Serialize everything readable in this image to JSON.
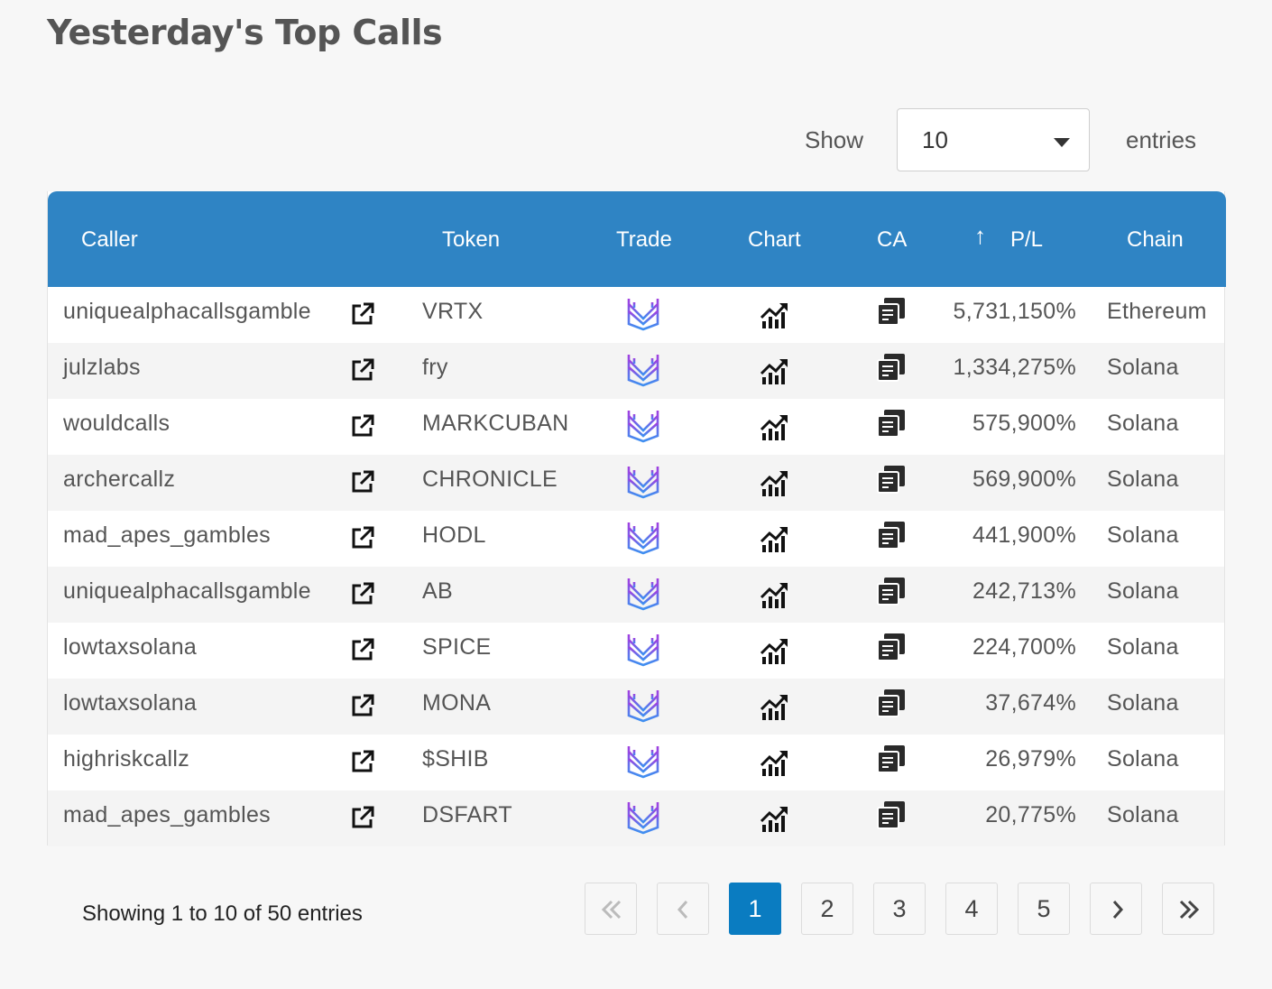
{
  "title": "Yesterday's Top Calls",
  "length_menu": {
    "show_label": "Show",
    "selected": "10",
    "entries_label": "entries"
  },
  "table": {
    "headers": {
      "caller": "Caller",
      "token": "Token",
      "trade": "Trade",
      "chart": "Chart",
      "ca": "CA",
      "sort_icon": "↑",
      "pl": "P/L",
      "chain": "Chain"
    },
    "icons": {
      "external": "external-link-icon",
      "trade": "trade-logo-icon",
      "chart": "chart-up-icon",
      "ca": "copy-icon"
    },
    "rows": [
      {
        "caller": "uniquealphacallsgamble",
        "token": "VRTX",
        "pl": "5,731,150%",
        "chain": "Ethereum"
      },
      {
        "caller": "julzlabs",
        "token": "fry",
        "pl": "1,334,275%",
        "chain": "Solana"
      },
      {
        "caller": "wouldcalls",
        "token": "MARKCUBAN",
        "pl": "575,900%",
        "chain": "Solana"
      },
      {
        "caller": "archercallz",
        "token": "CHRONICLE",
        "pl": "569,900%",
        "chain": "Solana"
      },
      {
        "caller": "mad_apes_gambles",
        "token": "HODL",
        "pl": "441,900%",
        "chain": "Solana"
      },
      {
        "caller": "uniquealphacallsgamble",
        "token": "AB",
        "pl": "242,713%",
        "chain": "Solana"
      },
      {
        "caller": "lowtaxsolana",
        "token": "SPICE",
        "pl": "224,700%",
        "chain": "Solana"
      },
      {
        "caller": "lowtaxsolana",
        "token": "MONA",
        "pl": "37,674%",
        "chain": "Solana"
      },
      {
        "caller": "highriskcallz",
        "token": "$SHIB",
        "pl": "26,979%",
        "chain": "Solana"
      },
      {
        "caller": "mad_apes_gambles",
        "token": "DSFART",
        "pl": "20,775%",
        "chain": "Solana"
      }
    ]
  },
  "info": "Showing 1 to 10 of 50 entries",
  "pagination": {
    "pages": [
      "1",
      "2",
      "3",
      "4",
      "5"
    ],
    "current": "1",
    "icons": {
      "first": "double-chevron-left-icon",
      "prev": "chevron-left-icon",
      "next": "chevron-right-icon",
      "last": "double-chevron-right-icon"
    }
  },
  "colors": {
    "header_bg": "#2f84c4",
    "active_page": "#0a7cc1",
    "trade_logo_top": "#a23fe0",
    "trade_logo_bottom": "#3f8ff0"
  }
}
